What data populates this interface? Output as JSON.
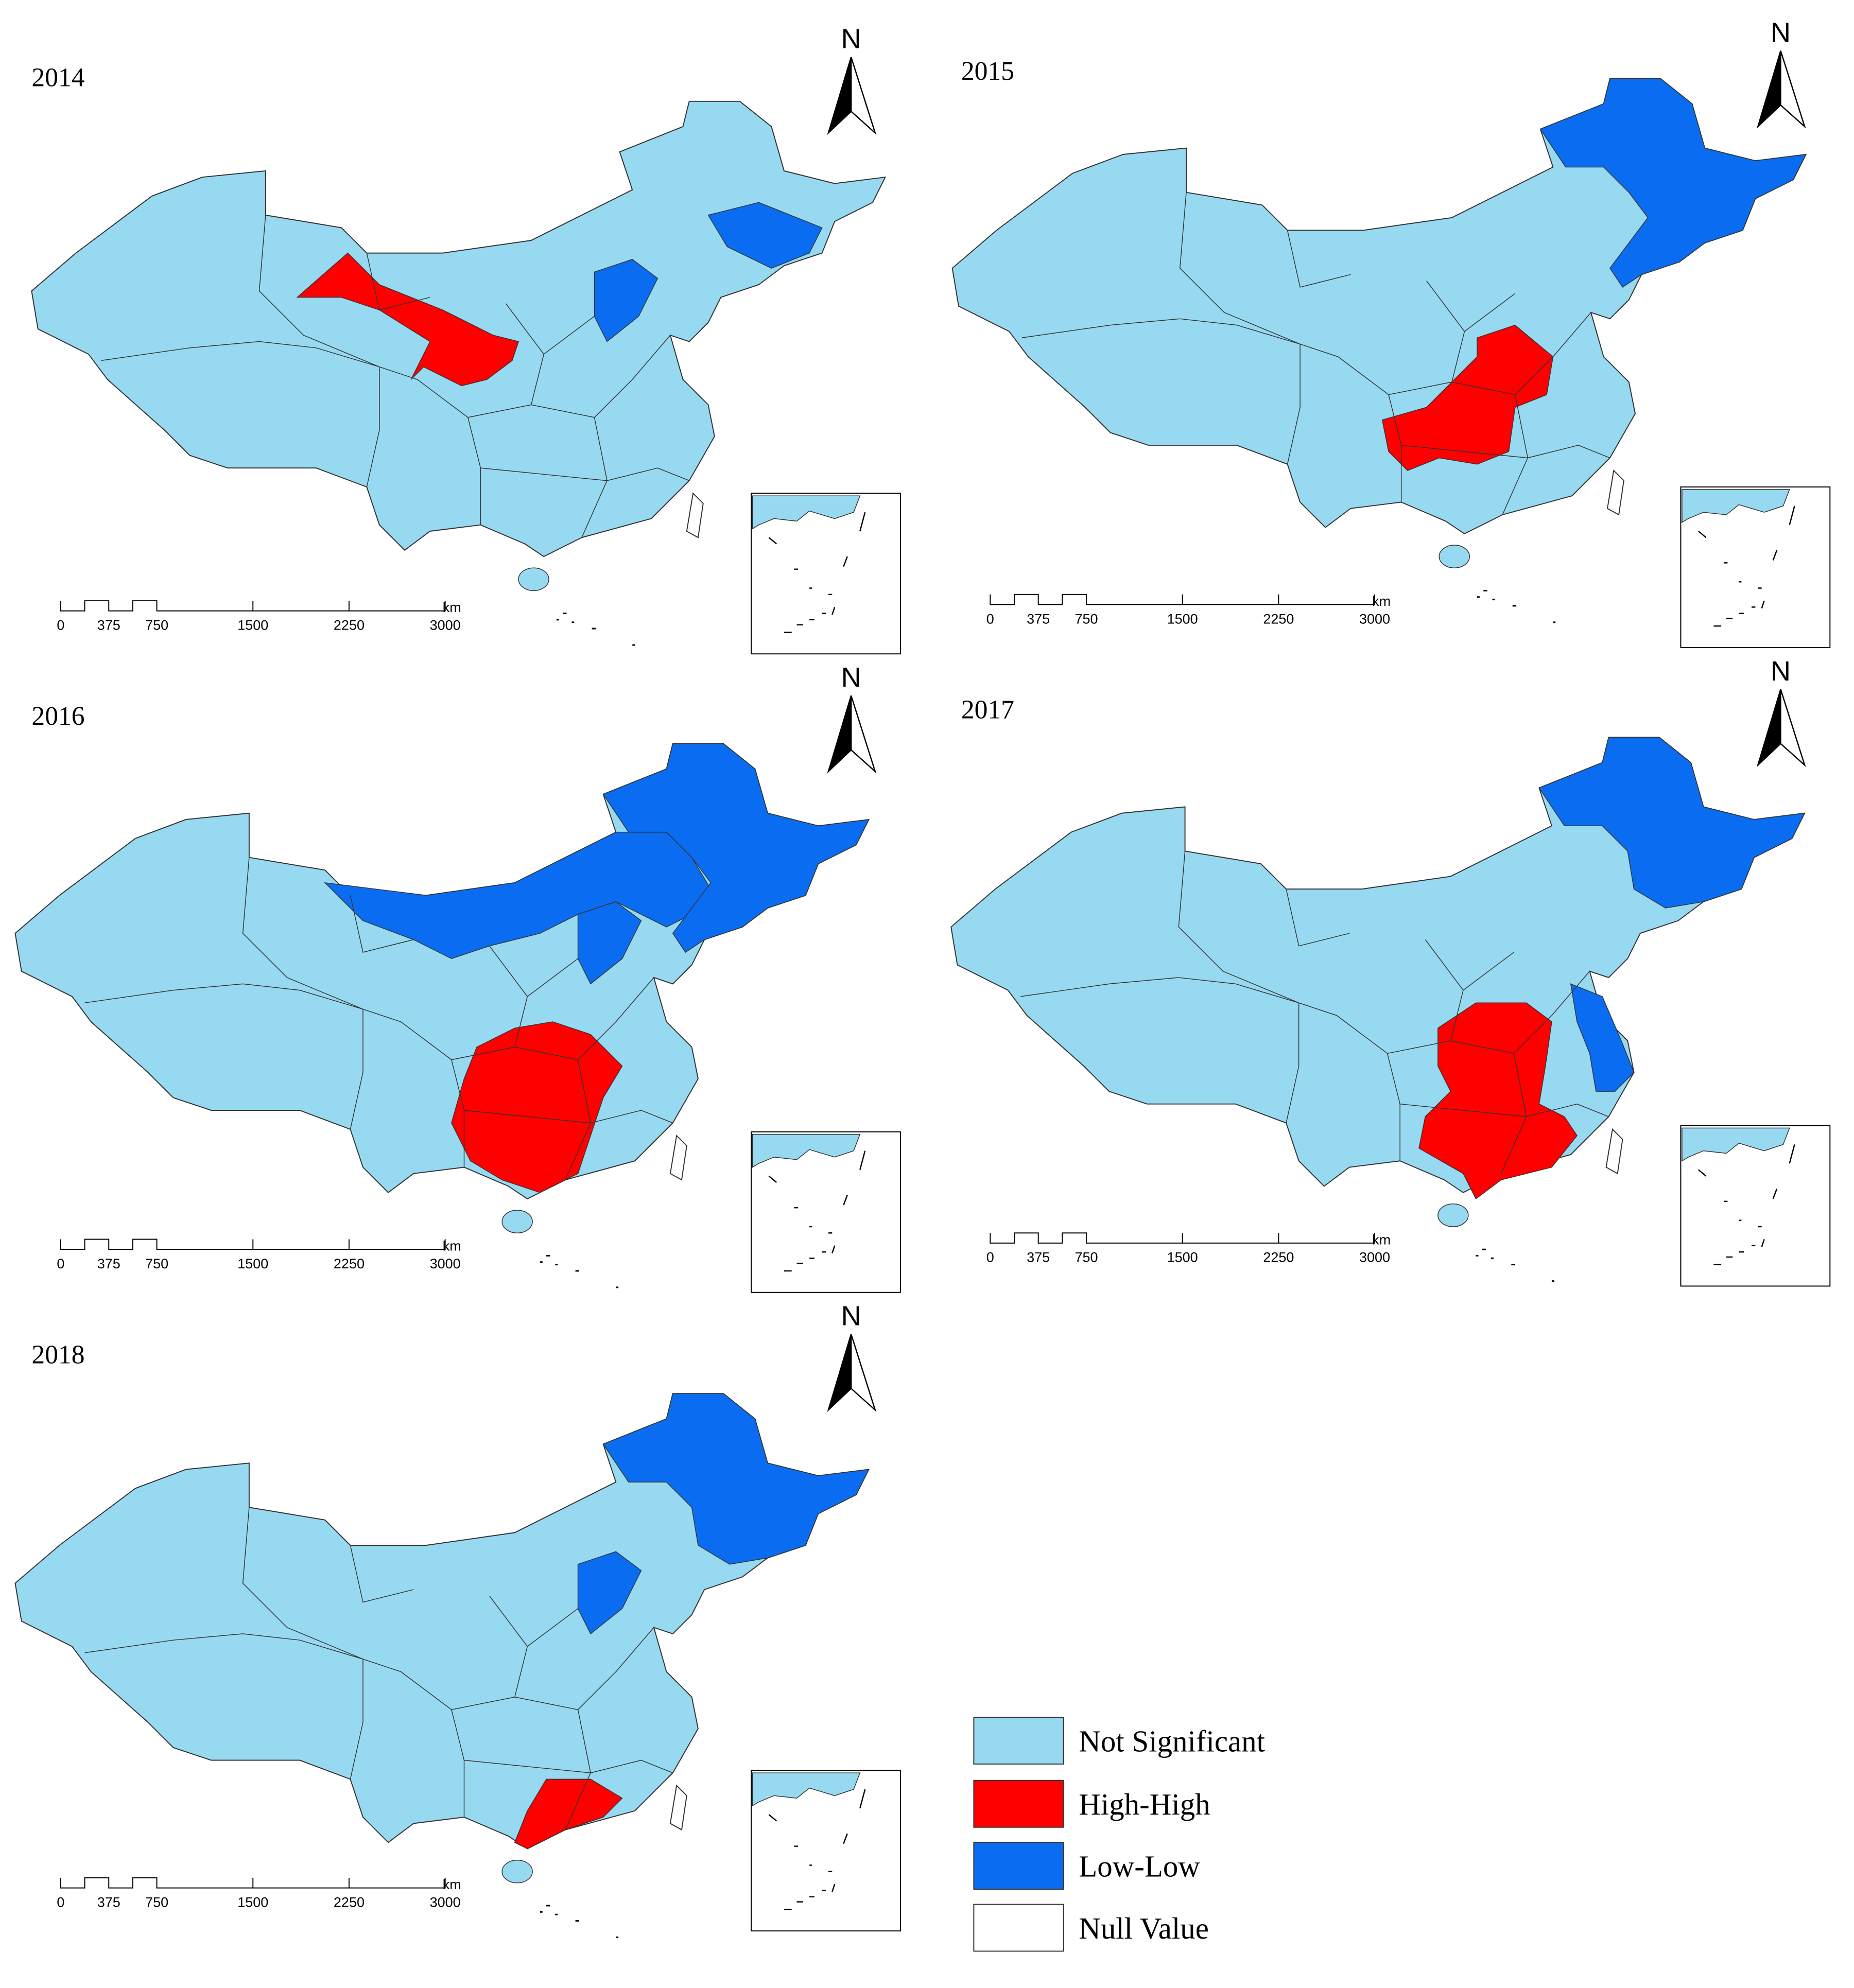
{
  "panels": [
    {
      "year": "2014",
      "north": "N",
      "scale_labels": [
        "0",
        "375",
        "750",
        "1500",
        "2250",
        "3000"
      ],
      "scale_unit": "km"
    },
    {
      "year": "2015",
      "north": "N",
      "scale_labels": [
        "0",
        "375",
        "750",
        "1500",
        "2250",
        "3000"
      ],
      "scale_unit": "km"
    },
    {
      "year": "2016",
      "north": "N",
      "scale_labels": [
        "0",
        "375",
        "750",
        "1500",
        "2250",
        "3000"
      ],
      "scale_unit": "km"
    },
    {
      "year": "2017",
      "north": "N",
      "scale_labels": [
        "0",
        "375",
        "750",
        "1500",
        "2250",
        "3000"
      ],
      "scale_unit": "km"
    },
    {
      "year": "2018",
      "north": "N",
      "scale_labels": [
        "0",
        "375",
        "750",
        "1500",
        "2250",
        "3000"
      ],
      "scale_unit": "km"
    }
  ],
  "legend": [
    {
      "label": "Not Significant",
      "color": "#97d9f0"
    },
    {
      "label": "High-High",
      "color": "#ff0000"
    },
    {
      "label": "Low-Low",
      "color": "#0a6cf0"
    },
    {
      "label": "Null Value",
      "color": "#ffffff"
    }
  ]
}
